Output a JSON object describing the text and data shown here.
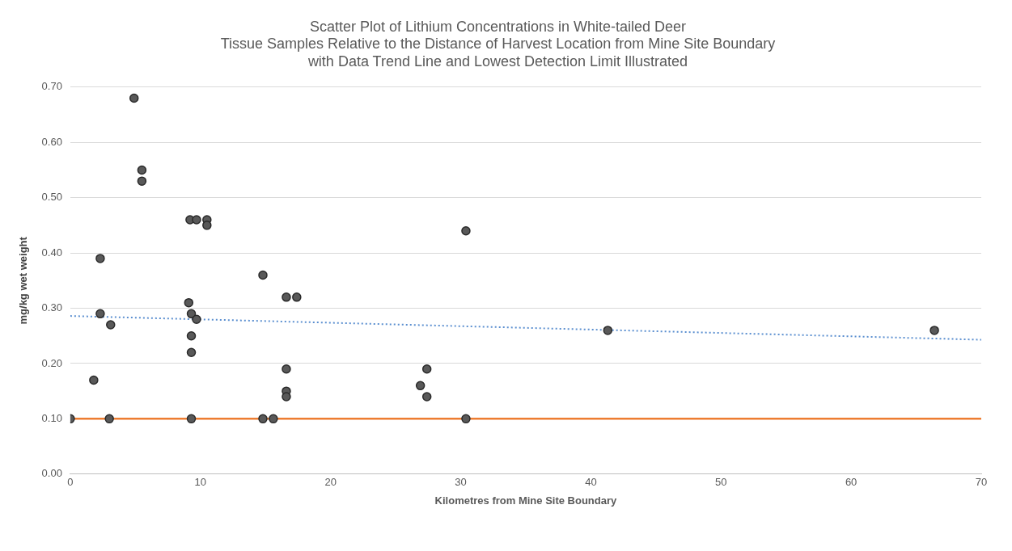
{
  "chart_data": {
    "type": "scatter",
    "title": "Scatter Plot of Lithium Concentrations in White-tailed Deer\nTissue Samples Relative to the Distance of Harvest Location from Mine Site Boundary\nwith Data Trend Line and Lowest Detection Limit Illustrated",
    "xlabel": "Kilometres from Mine Site Boundary",
    "ylabel": "mg/kg wet weight",
    "xlim": [
      0,
      70
    ],
    "xticks": [
      0,
      10,
      20,
      30,
      40,
      50,
      60,
      70
    ],
    "ylim": [
      0,
      0.7
    ],
    "yticks": [
      {
        "value": 0,
        "label": "0.00"
      },
      {
        "value": 0.1,
        "label": "0.10"
      },
      {
        "value": 0.2,
        "label": "0.20"
      },
      {
        "value": 0.3,
        "label": "0.30"
      },
      {
        "value": 0.4,
        "label": "0.40"
      },
      {
        "value": 0.5,
        "label": "0.50"
      },
      {
        "value": 0.6,
        "label": "0.60"
      },
      {
        "value": 0.7,
        "label": "0.70"
      }
    ],
    "grid": "y",
    "marker": "circle",
    "legend": false,
    "series": [
      {
        "color": "#595959",
        "x": [
          0,
          1.8,
          2.3,
          2.3,
          3.0,
          3.1,
          4.9,
          5.5,
          5.5,
          9.2,
          9.7,
          10.5,
          10.5,
          9.1,
          9.3,
          9.7,
          9.3,
          9.3,
          9.3,
          14.8,
          14.8,
          15.6,
          16.6,
          17.4,
          16.6,
          16.6,
          16.6,
          26.9,
          27.4,
          27.4,
          30.4,
          30.4,
          41.3,
          66.4
        ],
        "values": [
          0.1,
          0.17,
          0.39,
          0.29,
          0.1,
          0.27,
          0.68,
          0.55,
          0.53,
          0.46,
          0.46,
          0.46,
          0.45,
          0.31,
          0.29,
          0.28,
          0.25,
          0.22,
          0.1,
          0.36,
          0.1,
          0.1,
          0.32,
          0.32,
          0.19,
          0.15,
          0.14,
          0.16,
          0.19,
          0.14,
          0.44,
          0.1,
          0.26,
          0.26
        ]
      },
      {
        "type": "line",
        "color": "#5b8fd0",
        "line_style": "dotted",
        "marker": "none",
        "x": [
          0,
          70
        ],
        "values": [
          0.286,
          0.243
        ]
      }
    ],
    "ref_lines": [
      {
        "axis": "y",
        "value": 0.1,
        "color": "#ed7d31",
        "line_style": "solid"
      }
    ]
  }
}
